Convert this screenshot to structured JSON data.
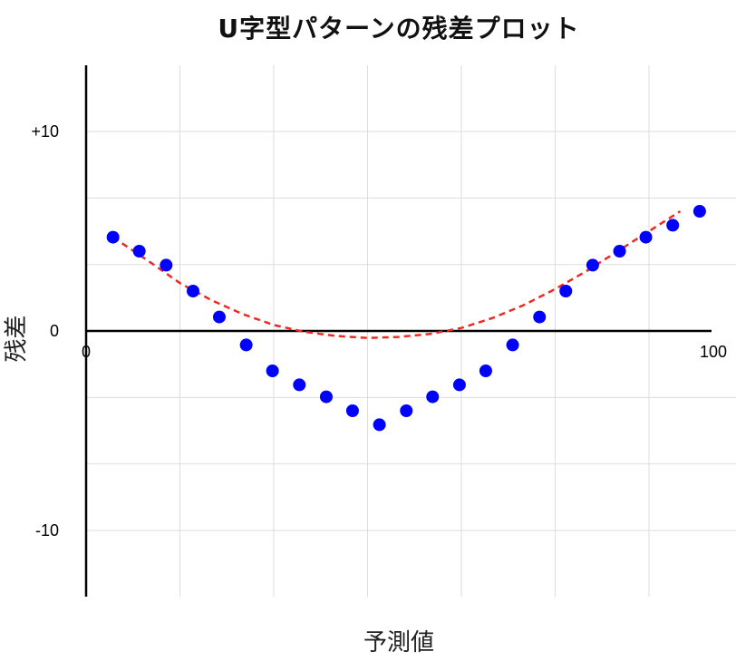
{
  "chart_data": {
    "type": "scatter",
    "title": "U字型パターンの残差プロット",
    "xlabel": "予測値",
    "ylabel": "残差",
    "xlim": [
      0,
      100
    ],
    "ylim": [
      -12,
      12
    ],
    "x_tick_labels": [
      {
        "value": 0,
        "label": "0"
      },
      {
        "value": 100,
        "label": "100"
      }
    ],
    "y_tick_labels": [
      {
        "value": 10,
        "label": "+10"
      },
      {
        "value": 0,
        "label": "0"
      },
      {
        "value": -10,
        "label": "-10"
      }
    ],
    "grid": true,
    "series": [
      {
        "kind": "points",
        "color": "#0000ff",
        "x": [
          4.3,
          8.5,
          12.8,
          17.1,
          21.3,
          25.6,
          29.8,
          34.1,
          38.4,
          42.6,
          46.9,
          51.2,
          55.4,
          59.7,
          63.9,
          68.2,
          72.5,
          76.7,
          81.0,
          85.3,
          89.5,
          93.8,
          98.1
        ],
        "y": [
          4.7,
          4.0,
          3.3,
          2.0,
          0.7,
          -0.7,
          -2.0,
          -2.7,
          -3.3,
          -4.0,
          -4.7,
          -4.0,
          -3.3,
          -2.7,
          -2.0,
          -0.7,
          0.7,
          2.0,
          3.3,
          4.0,
          4.7,
          5.3,
          6.0
        ]
      },
      {
        "kind": "trend",
        "color": "#ee2a24",
        "style": "dashed",
        "x": [
          4.3,
          10,
          15,
          20,
          25,
          30,
          35,
          40,
          45,
          50,
          55,
          60,
          65,
          70,
          75,
          80,
          85,
          90,
          95
        ],
        "y": [
          4.7,
          3.5,
          2.4,
          1.55,
          0.85,
          0.3,
          -0.05,
          -0.25,
          -0.35,
          -0.3,
          -0.15,
          0.15,
          0.65,
          1.3,
          2.1,
          3.0,
          4.0,
          5.0,
          6.0
        ]
      }
    ]
  }
}
